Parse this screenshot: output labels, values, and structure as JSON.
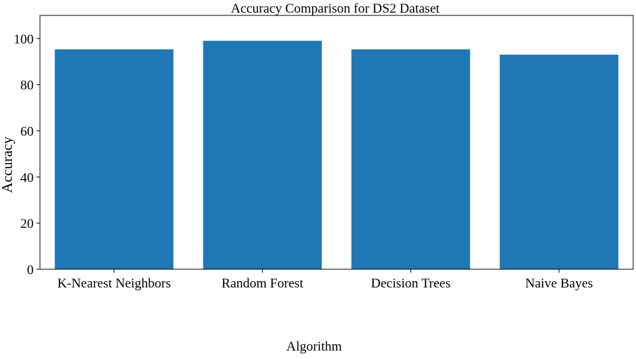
{
  "chart_data": {
    "type": "bar",
    "title": "Accuracy Comparison for DS2 Dataset",
    "xlabel": "Algorithm",
    "ylabel": "Accuracy",
    "categories": [
      "K-Nearest Neighbors",
      "Random Forest",
      "Decision Trees",
      "Naive Bayes"
    ],
    "values": [
      95.3,
      99.0,
      95.3,
      93.0
    ],
    "ylim": [
      0,
      110
    ],
    "yticks": [
      0,
      20,
      40,
      60,
      80,
      100
    ],
    "grid": false,
    "legend": "none",
    "bar_color": "#1f77b4"
  }
}
